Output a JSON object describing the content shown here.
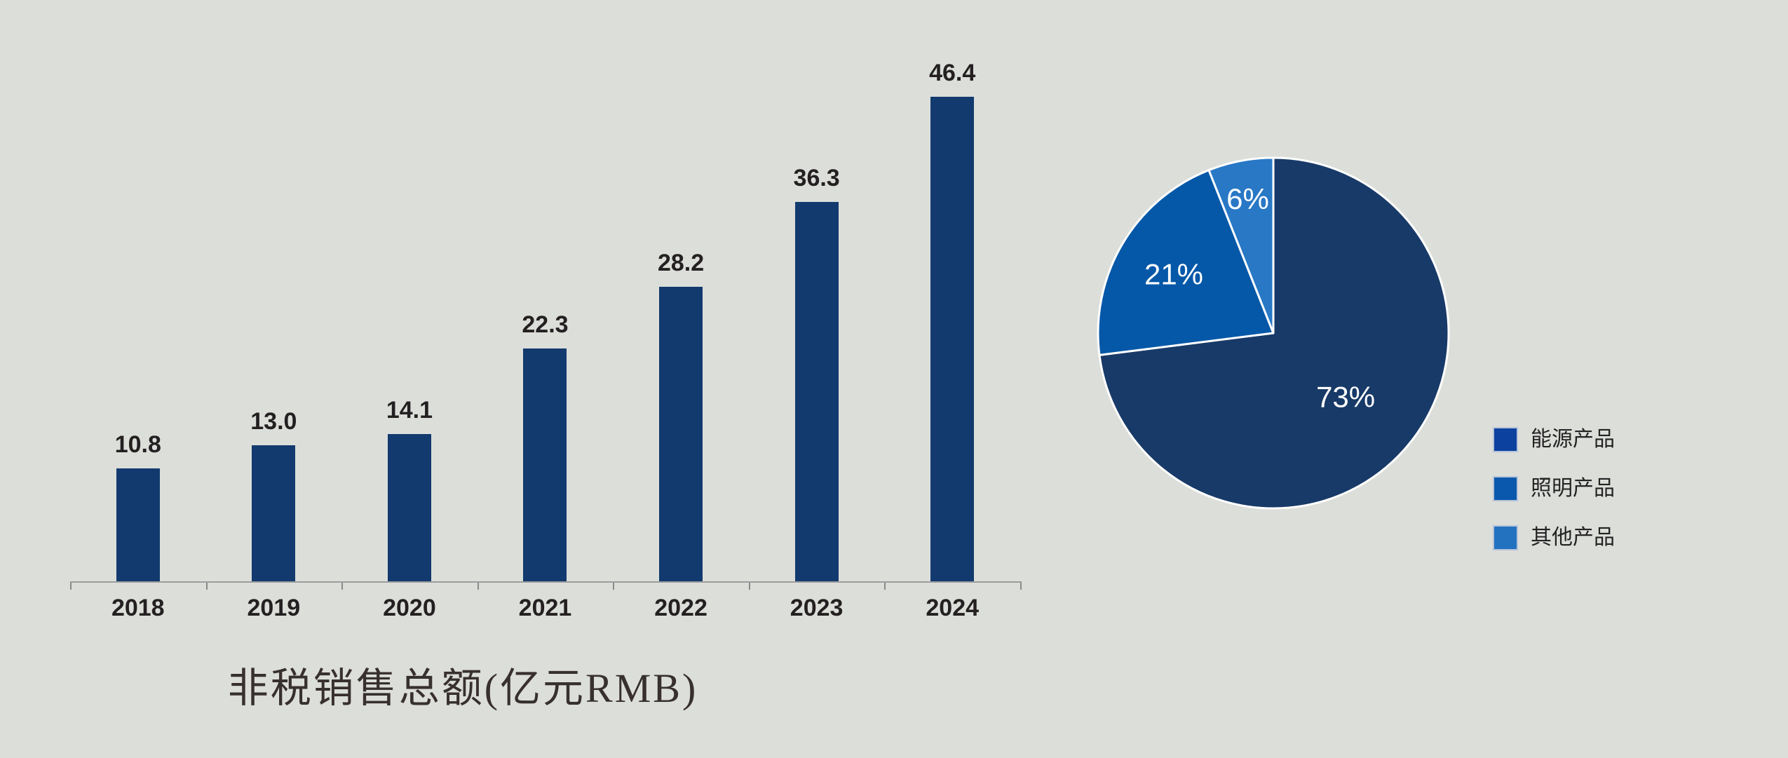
{
  "background_color": "#dcdeda",
  "chart_data": [
    {
      "type": "bar",
      "title": "非税销售总额(亿元RMB)",
      "categories": [
        "2018",
        "2019",
        "2020",
        "2021",
        "2022",
        "2023",
        "2024"
      ],
      "values": [
        10.8,
        13.0,
        14.1,
        22.3,
        28.2,
        36.3,
        46.4
      ],
      "value_labels": [
        "10.8",
        "13.0",
        "14.1",
        "22.3",
        "28.2",
        "36.3",
        "46.4"
      ],
      "xlabel": "",
      "ylabel": "",
      "ylim": [
        0,
        50
      ],
      "grid": false,
      "bar_color": "#123a6e",
      "axis_line_color": "#9c9c9c",
      "value_label_color": "#242021",
      "tick_label_color": "#242021"
    },
    {
      "type": "pie",
      "start_angle_deg": 0,
      "direction": "clockwise",
      "label_color": "#ffffff",
      "legend_position": "right",
      "slices": [
        {
          "label": "能源产品",
          "pct": 73,
          "display": "73%",
          "color": "#183a68",
          "legend_color": "#0c41a0",
          "label_r": 0.55
        },
        {
          "label": "照明产品",
          "pct": 21,
          "display": "21%",
          "color": "#0558a8",
          "legend_color": "#0a58ad",
          "label_r": 0.66
        },
        {
          "label": "其他产品",
          "pct": 6,
          "display": "6%",
          "color": "#2878c5",
          "legend_color": "#2272c0",
          "label_r": 0.78
        }
      ]
    }
  ]
}
